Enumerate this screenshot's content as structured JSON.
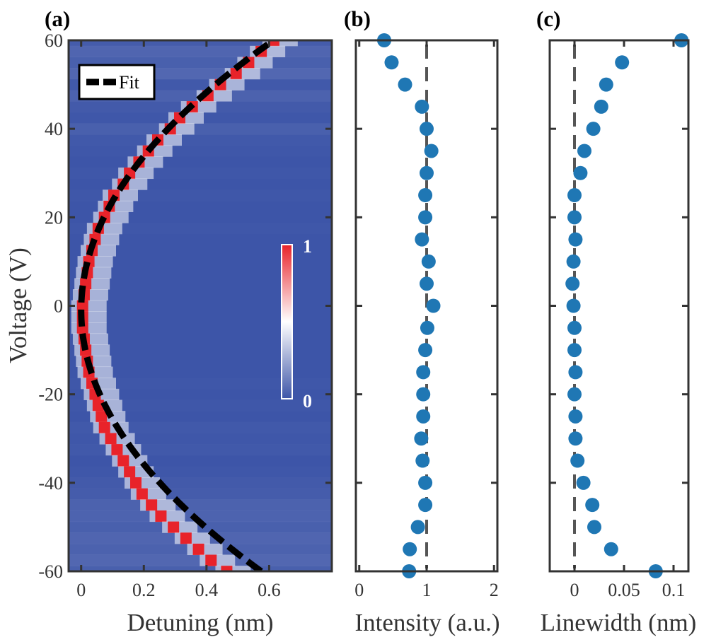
{
  "panels": {
    "a": {
      "label": "(a)",
      "xlabel": "Detuning (nm)",
      "ylabel": "Voltage (V)",
      "legend": "Fit",
      "colorbar": {
        "max_label": "1",
        "min_label": "0"
      }
    },
    "b": {
      "label": "(b)",
      "xlabel": "Intensity (a.u.)"
    },
    "c": {
      "label": "(c)",
      "xlabel": "Linewidth (nm)"
    }
  },
  "colors": {
    "background_field": "#3d55a8",
    "peak": "#e8232a",
    "marker": "#1f77b4",
    "fit_line": "#000000",
    "reference_line": "#555555",
    "axis": "#333333"
  },
  "chart_data": [
    {
      "type": "heatmap",
      "title": "(a)",
      "xlabel": "Detuning (nm)",
      "ylabel": "Voltage (V)",
      "xlim": [
        -0.04,
        0.8
      ],
      "ylim": [
        -60,
        60
      ],
      "x_ticks": [
        0,
        0.2,
        0.4,
        0.6
      ],
      "x_tick_labels": [
        "0",
        "0.2",
        "0.4",
        "0.6"
      ],
      "y_ticks": [
        -60,
        -40,
        -20,
        0,
        20,
        40,
        60
      ],
      "y_tick_labels": [
        "-60",
        "-40",
        "-20",
        "0",
        "20",
        "40",
        "60"
      ],
      "colorbar_range": [
        0,
        1
      ],
      "legend": [
        "Fit"
      ],
      "fit": {
        "model": "quadratic",
        "vertex_detuning": 0,
        "vertex_voltage": -1,
        "coefficient_nm_per_V2": 0.000165,
        "dash": true
      },
      "peak_voltage": [
        60,
        57.5,
        55,
        52.5,
        50,
        47.5,
        45,
        42.5,
        40,
        37.5,
        35,
        32.5,
        30,
        27.5,
        25,
        22.5,
        20,
        17.5,
        15,
        12.5,
        10,
        7.5,
        5,
        2.5,
        0,
        -2.5,
        -5,
        -7.5,
        -10,
        -12.5,
        -15,
        -17.5,
        -20,
        -22.5,
        -25,
        -27.5,
        -30,
        -32.5,
        -35,
        -37.5,
        -40,
        -42.5,
        -45,
        -47.5,
        -50,
        -52.5,
        -55,
        -57.5,
        -60
      ],
      "peak_detuning": [
        0.61,
        0.57,
        0.53,
        0.49,
        0.44,
        0.4,
        0.35,
        0.31,
        0.28,
        0.24,
        0.21,
        0.18,
        0.15,
        0.13,
        0.1,
        0.085,
        0.07,
        0.05,
        0.04,
        0.03,
        0.02,
        0.015,
        0.01,
        0.005,
        0.0,
        0.0,
        0.0,
        0.005,
        0.01,
        0.015,
        0.02,
        0.03,
        0.04,
        0.05,
        0.06,
        0.07,
        0.09,
        0.11,
        0.13,
        0.15,
        0.17,
        0.19,
        0.22,
        0.25,
        0.29,
        0.33,
        0.37,
        0.41,
        0.46
      ],
      "background_row_noise": [
        0.2,
        0.45,
        0.3,
        0.5,
        0.1,
        0.35,
        0.15,
        0.05,
        0.3,
        0.1,
        0.05,
        0.0,
        0.05,
        0.0,
        0.05,
        0.0,
        0.0,
        0.05,
        0.0,
        0.0,
        0.0,
        0.0,
        0.0,
        0.0,
        0.0,
        0.0,
        0.0,
        0.0,
        0.0,
        0.0,
        0.0,
        0.05,
        0.0,
        0.05,
        0.0,
        0.1,
        0.05,
        0.1,
        0.0,
        0.05,
        0.15,
        0.2,
        0.35,
        0.4,
        0.3,
        0.45,
        0.35,
        0.5,
        0.3
      ]
    },
    {
      "type": "scatter",
      "title": "(b)",
      "xlabel": "Intensity (a.u.)",
      "xlim": [
        -0.05,
        2.05
      ],
      "ylim": [
        -60,
        60
      ],
      "x_ticks": [
        0,
        1,
        2
      ],
      "x_tick_labels": [
        "0",
        "1",
        "2"
      ],
      "reference_x": 1,
      "series": [
        {
          "name": "Intensity",
          "x": [
            0.37,
            0.48,
            0.68,
            0.93,
            1.0,
            1.07,
            1.0,
            0.98,
            0.98,
            0.93,
            1.03,
            1.0,
            1.1,
            1.01,
            0.98,
            0.95,
            0.95,
            0.95,
            0.92,
            0.94,
            0.98,
            0.98,
            0.87,
            0.75,
            0.74
          ],
          "y": [
            60,
            55,
            50,
            45,
            40,
            35,
            30,
            25,
            20,
            15,
            10,
            5,
            0,
            -5,
            -10,
            -15,
            -20,
            -25,
            -30,
            -35,
            -40,
            -45,
            -50,
            -55,
            -60
          ]
        }
      ]
    },
    {
      "type": "scatter",
      "title": "(c)",
      "xlabel": "Linewidth (nm)",
      "xlim": [
        -0.025,
        0.115
      ],
      "ylim": [
        -60,
        60
      ],
      "x_ticks": [
        0,
        0.05,
        0.1
      ],
      "x_tick_labels": [
        "0",
        "0.05",
        "0.1"
      ],
      "reference_x": 0,
      "series": [
        {
          "name": "Linewidth",
          "x": [
            0.108,
            0.048,
            0.032,
            0.027,
            0.019,
            0.01,
            0.006,
            0.0,
            0.0,
            0.001,
            -0.001,
            -0.002,
            -0.001,
            0.0,
            0.0,
            0.001,
            0.0,
            0.001,
            0.001,
            0.003,
            0.009,
            0.018,
            0.02,
            0.037,
            0.082
          ],
          "y": [
            60,
            55,
            50,
            45,
            40,
            35,
            30,
            25,
            20,
            15,
            10,
            5,
            0,
            -5,
            -10,
            -15,
            -20,
            -25,
            -30,
            -35,
            -40,
            -45,
            -50,
            -55,
            -60
          ]
        }
      ]
    }
  ]
}
